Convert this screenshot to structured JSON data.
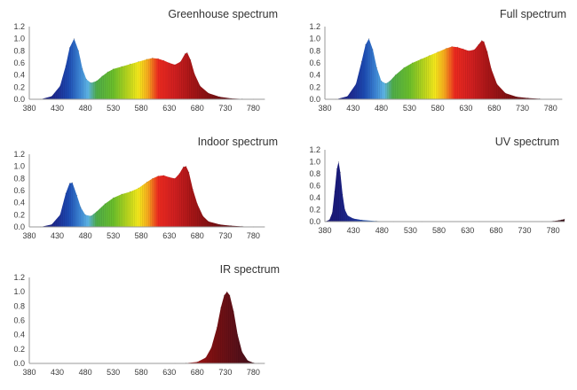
{
  "palette": {
    "axis": "#9a9a9a",
    "text": "#3a3a3a",
    "spectrum_stops": [
      {
        "nm": 400,
        "color": "#1a1a7a"
      },
      {
        "nm": 430,
        "color": "#1e2f96"
      },
      {
        "nm": 450,
        "color": "#1c4bb3"
      },
      {
        "nm": 470,
        "color": "#3d86d6"
      },
      {
        "nm": 485,
        "color": "#5fb7e8"
      },
      {
        "nm": 500,
        "color": "#4fae4a"
      },
      {
        "nm": 530,
        "color": "#6cc02b"
      },
      {
        "nm": 555,
        "color": "#b8d61e"
      },
      {
        "nm": 575,
        "color": "#f7ea1c"
      },
      {
        "nm": 592,
        "color": "#f8a91e"
      },
      {
        "nm": 610,
        "color": "#ee2a1f"
      },
      {
        "nm": 640,
        "color": "#d11f20"
      },
      {
        "nm": 670,
        "color": "#a81617"
      },
      {
        "nm": 710,
        "color": "#7a1012"
      },
      {
        "nm": 760,
        "color": "#52101a"
      },
      {
        "nm": 800,
        "color": "#3a0f18"
      }
    ]
  },
  "chart_data": [
    {
      "type": "area",
      "title": "Greenhouse spectrum",
      "xlabel": "",
      "ylabel": "",
      "xlim": [
        380,
        800
      ],
      "ylim": [
        0,
        1.2
      ],
      "x_ticks": [
        "380",
        "430",
        "480",
        "530",
        "580",
        "630",
        "680",
        "730",
        "780"
      ],
      "y_ticks": [
        "0.0",
        "0.2",
        "0.4",
        "0.6",
        "0.8",
        "1.0",
        "1.2"
      ],
      "x": [
        400,
        420,
        435,
        445,
        452,
        460,
        468,
        475,
        482,
        490,
        500,
        510,
        520,
        530,
        545,
        560,
        575,
        590,
        600,
        610,
        620,
        630,
        640,
        650,
        658,
        662,
        668,
        675,
        685,
        700,
        720,
        740,
        760,
        780,
        800
      ],
      "y": [
        0.0,
        0.05,
        0.22,
        0.55,
        0.85,
        1.0,
        0.8,
        0.5,
        0.33,
        0.27,
        0.3,
        0.38,
        0.45,
        0.5,
        0.54,
        0.58,
        0.62,
        0.66,
        0.68,
        0.67,
        0.64,
        0.6,
        0.57,
        0.62,
        0.75,
        0.77,
        0.65,
        0.42,
        0.22,
        0.1,
        0.04,
        0.015,
        0.005,
        0.0,
        0.0
      ]
    },
    {
      "type": "area",
      "title": "Full spectrum",
      "xlabel": "",
      "ylabel": "",
      "xlim": [
        380,
        800
      ],
      "ylim": [
        0,
        1.2
      ],
      "x_ticks": [
        "380",
        "430",
        "480",
        "530",
        "580",
        "630",
        "680",
        "730",
        "780"
      ],
      "y_ticks": [
        "0.0",
        "0.2",
        "0.4",
        "0.6",
        "0.8",
        "1.0",
        "1.2"
      ],
      "x": [
        400,
        420,
        435,
        445,
        452,
        458,
        465,
        472,
        480,
        488,
        495,
        505,
        520,
        535,
        550,
        565,
        580,
        595,
        605,
        615,
        625,
        635,
        645,
        652,
        658,
        662,
        668,
        675,
        685,
        700,
        720,
        740,
        760,
        780,
        800
      ],
      "y": [
        0.0,
        0.05,
        0.25,
        0.62,
        0.9,
        1.0,
        0.82,
        0.52,
        0.3,
        0.26,
        0.3,
        0.4,
        0.52,
        0.6,
        0.66,
        0.72,
        0.78,
        0.84,
        0.87,
        0.86,
        0.83,
        0.8,
        0.82,
        0.9,
        0.97,
        0.95,
        0.78,
        0.5,
        0.25,
        0.1,
        0.04,
        0.02,
        0.01,
        0.0,
        0.0
      ]
    },
    {
      "type": "area",
      "title": "Indoor spectrum",
      "xlabel": "",
      "ylabel": "",
      "xlim": [
        380,
        800
      ],
      "ylim": [
        0,
        1.2
      ],
      "x_ticks": [
        "380",
        "430",
        "480",
        "530",
        "580",
        "630",
        "680",
        "730",
        "780"
      ],
      "y_ticks": [
        "0.0",
        "0.2",
        "0.4",
        "0.6",
        "0.8",
        "1.0",
        "1.2"
      ],
      "x": [
        400,
        420,
        435,
        445,
        452,
        457,
        465,
        472,
        480,
        490,
        500,
        515,
        530,
        545,
        560,
        575,
        590,
        600,
        610,
        620,
        630,
        640,
        648,
        655,
        660,
        665,
        672,
        680,
        690,
        700,
        720,
        740,
        760,
        780,
        800
      ],
      "y": [
        0.0,
        0.04,
        0.2,
        0.55,
        0.72,
        0.73,
        0.52,
        0.32,
        0.2,
        0.18,
        0.25,
        0.38,
        0.48,
        0.54,
        0.58,
        0.64,
        0.74,
        0.8,
        0.84,
        0.85,
        0.82,
        0.8,
        0.88,
        0.99,
        1.0,
        0.9,
        0.62,
        0.38,
        0.18,
        0.09,
        0.04,
        0.02,
        0.01,
        0.0,
        0.0
      ]
    },
    {
      "type": "area",
      "title": "UV spectrum",
      "xlabel": "",
      "ylabel": "",
      "xlim": [
        380,
        800
      ],
      "ylim": [
        0,
        1.2
      ],
      "x_ticks": [
        "380",
        "430",
        "480",
        "530",
        "580",
        "630",
        "680",
        "730",
        "780"
      ],
      "y_ticks": [
        "0.0",
        "0.2",
        "0.4",
        "0.6",
        "0.8",
        "1.0",
        "1.2"
      ],
      "x": [
        380,
        388,
        393,
        397,
        401,
        404,
        407,
        411,
        415,
        420,
        430,
        445,
        470,
        500,
        550,
        650,
        760,
        780,
        790,
        795,
        800
      ],
      "y": [
        0.0,
        0.03,
        0.15,
        0.5,
        0.88,
        1.0,
        0.82,
        0.45,
        0.2,
        0.1,
        0.05,
        0.025,
        0.01,
        0.0,
        0.0,
        0.0,
        0.0,
        0.01,
        0.02,
        0.03,
        0.04
      ]
    },
    {
      "type": "area",
      "title": "IR spectrum",
      "xlabel": "",
      "ylabel": "",
      "xlim": [
        380,
        800
      ],
      "ylim": [
        0,
        1.2
      ],
      "x_ticks": [
        "380",
        "430",
        "480",
        "530",
        "580",
        "630",
        "680",
        "730",
        "780"
      ],
      "y_ticks": [
        "0.0",
        "0.2",
        "0.4",
        "0.6",
        "0.8",
        "1.0",
        "1.2"
      ],
      "x": [
        640,
        660,
        680,
        695,
        705,
        715,
        722,
        728,
        733,
        738,
        745,
        752,
        760,
        770,
        780,
        790,
        800
      ],
      "y": [
        0.0,
        0.005,
        0.02,
        0.08,
        0.22,
        0.5,
        0.78,
        0.95,
        1.0,
        0.95,
        0.72,
        0.4,
        0.16,
        0.04,
        0.01,
        0.0,
        0.0
      ]
    }
  ]
}
